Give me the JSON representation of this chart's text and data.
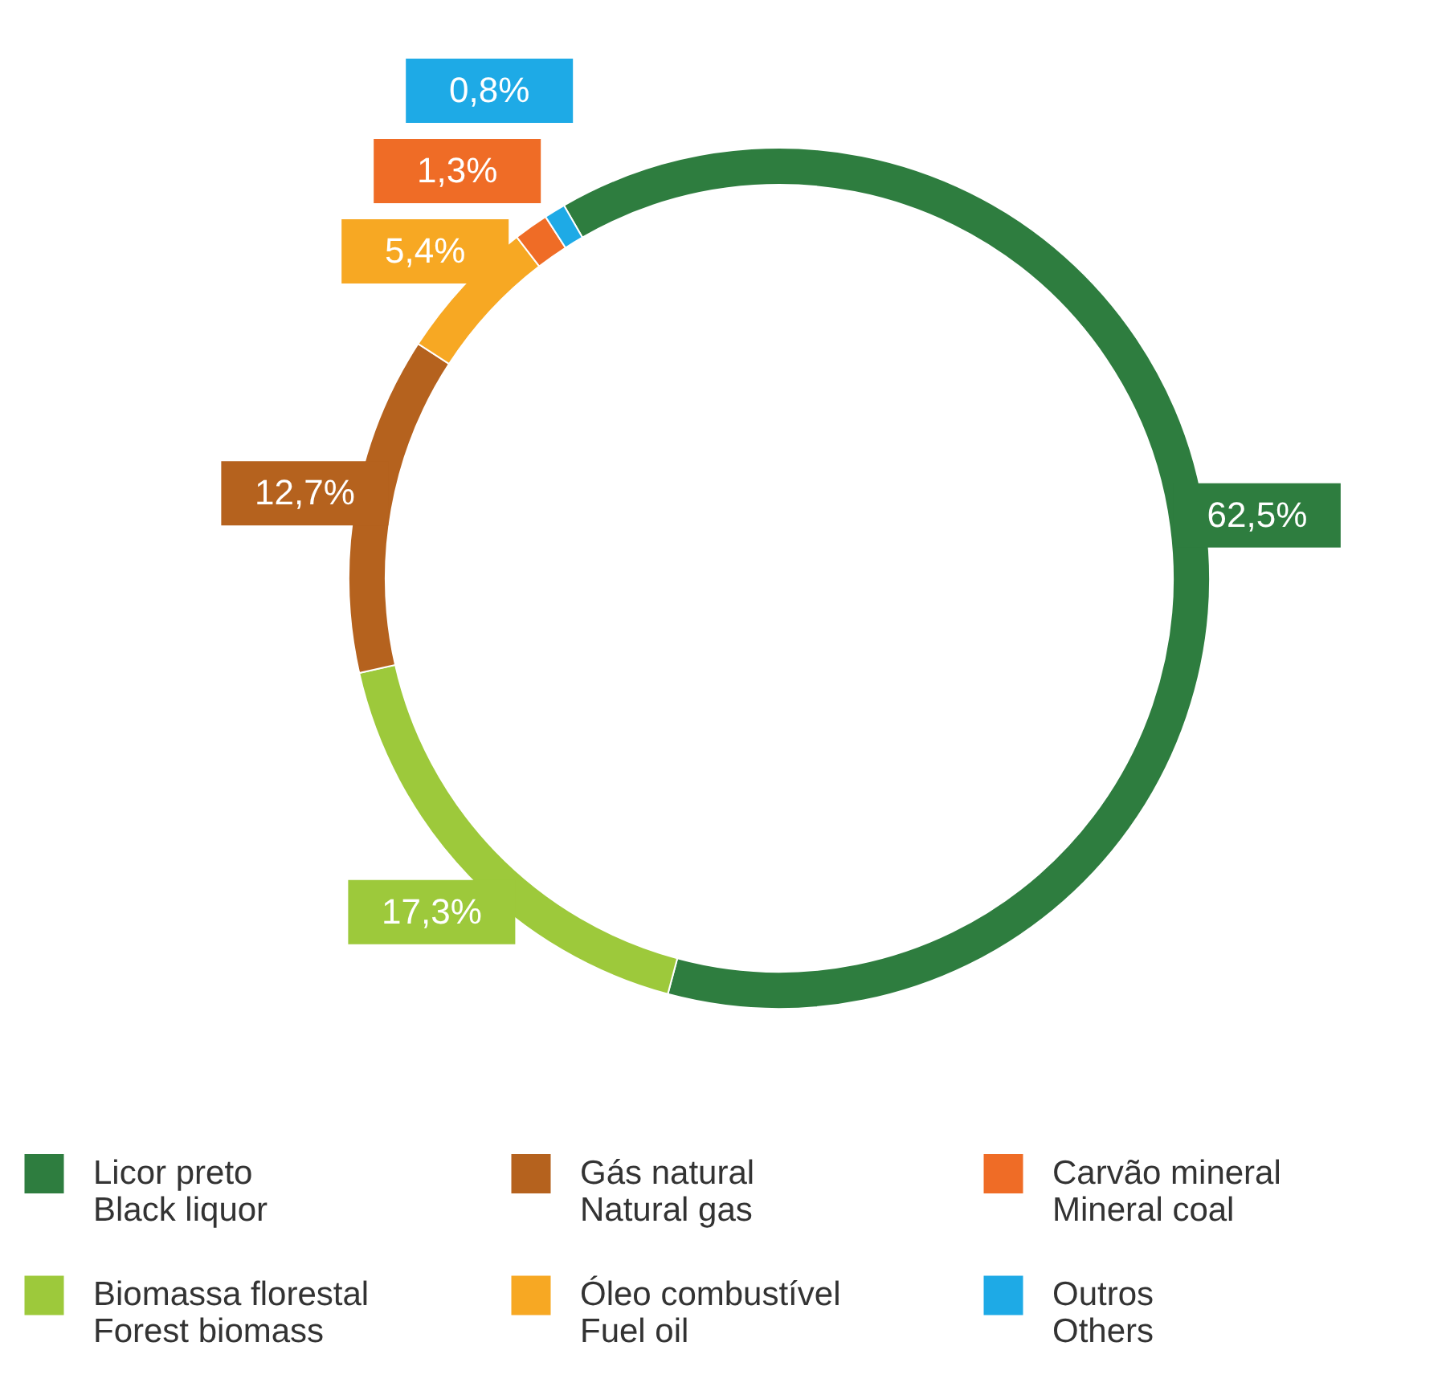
{
  "chart_data": {
    "type": "donut",
    "categories": [
      "Licor preto\nBlack liquor",
      "Biomassa florestal\nForest biomass",
      "Gás natural\nNatural gas",
      "Óleo combustível\nFuel oil",
      "Carvão mineral\nMineral coal",
      "Outros\nOthers"
    ],
    "values": [
      62.5,
      17.3,
      12.7,
      5.4,
      1.3,
      0.8
    ],
    "colors": [
      "#2e7d3f",
      "#9dc93b",
      "#b5621e",
      "#f7a823",
      "#ef6c26",
      "#1eaae6"
    ],
    "value_labels": [
      "62,5%",
      "17,3%",
      "12,7%",
      "5,4%",
      "1,3%",
      "0,8%"
    ],
    "legend": "bottom"
  }
}
